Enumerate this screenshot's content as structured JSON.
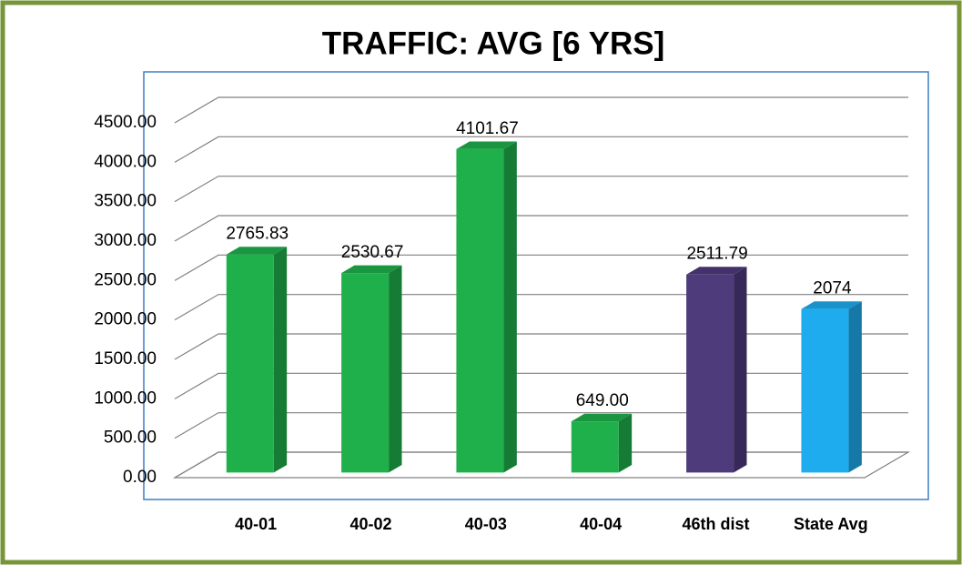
{
  "chart_data": {
    "type": "bar3d",
    "title": "TRAFFIC: AVG  [6 YRS]",
    "categories": [
      "40-01",
      "40-02",
      "40-03",
      "40-04",
      "46th dist",
      "State Avg"
    ],
    "values": [
      2765.83,
      2530.67,
      4101.67,
      649,
      2511.79,
      2074
    ],
    "value_labels": [
      "2765.83",
      "2530.67",
      "4101.67",
      "649.00",
      "2511.79",
      "2074"
    ],
    "colors": [
      "#1fb04b",
      "#1fb04b",
      "#1fb04b",
      "#1fb04b",
      "#4e3b7c",
      "#1eacef"
    ],
    "ylim": [
      0,
      4500
    ],
    "yticks": [
      {
        "value": 0,
        "label": "0.00"
      },
      {
        "value": 500,
        "label": "500.00"
      },
      {
        "value": 1000,
        "label": "1000.00"
      },
      {
        "value": 1500,
        "label": "1500.00"
      },
      {
        "value": 2000,
        "label": "2000.00"
      },
      {
        "value": 2500,
        "label": "2500.00"
      },
      {
        "value": 3000,
        "label": "3000.00"
      },
      {
        "value": 3500,
        "label": "3500.00"
      },
      {
        "value": 4000,
        "label": "4000.00"
      },
      {
        "value": 4500,
        "label": "4500.00"
      }
    ],
    "grid": true
  }
}
